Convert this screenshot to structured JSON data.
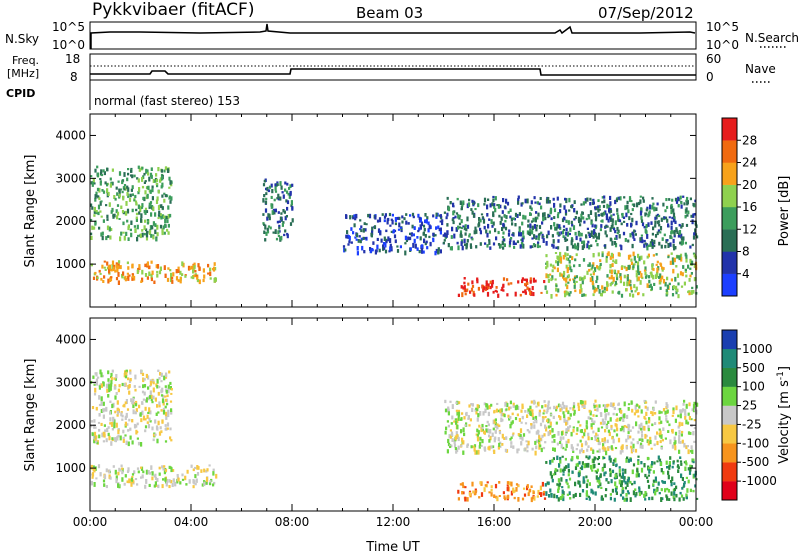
{
  "header": {
    "station": "Pykkvibaer (fitACF)",
    "beam": "Beam 03",
    "date": "07/Sep/2012"
  },
  "top_panels": {
    "nsky_label": "N.Sky",
    "nsky_ticks": [
      "10^5",
      "10^0"
    ],
    "nsearch_label": "N.Search",
    "nsearch_ticks": [
      "10^5",
      "10^0"
    ],
    "freq_label_line1": "Freq.",
    "freq_label_line2": "[MHz]",
    "freq_ticks": [
      "18",
      "8"
    ],
    "nave_label": "Nave",
    "nave_ticks": [
      "60",
      "0"
    ],
    "cpid_label": "CPID",
    "cpid_text": "normal (fast stereo) 153"
  },
  "colors": {
    "power": [
      "#1c3fff",
      "#2233aa",
      "#2a6e55",
      "#3c9d5c",
      "#8fd14f",
      "#f7a21b",
      "#f06a10",
      "#e61c1c"
    ],
    "velocity": [
      "#e0001a",
      "#f03a10",
      "#f7941d",
      "#f7c843",
      "#c8c8c8",
      "#6cd640",
      "#2a8a3e",
      "#1f8a77",
      "#1a3fb0"
    ]
  },
  "chart_data": [
    {
      "type": "heatmap",
      "title": "",
      "ylabel": "Slant Range [km]",
      "xlabel": "",
      "xlim": [
        "00:00",
        "24:00"
      ],
      "ylim": [
        0,
        4500
      ],
      "x_ticks": [
        "00:00",
        "04:00",
        "08:00",
        "12:00",
        "16:00",
        "20:00",
        "00:00"
      ],
      "y_ticks": [
        "1000",
        "2000",
        "3000",
        "4000"
      ],
      "colorbar": {
        "label": "Power [dB]",
        "ticks": [
          "4",
          "8",
          "12",
          "16",
          "20",
          "24",
          "28"
        ],
        "range": [
          0,
          30
        ]
      },
      "echo_regions": [
        {
          "t0": 0.0,
          "t1": 3.2,
          "r0": 1600,
          "r1": 3300,
          "level": 3
        },
        {
          "t0": 0.0,
          "t1": 5.0,
          "r0": 600,
          "r1": 1100,
          "level": 5
        },
        {
          "t0": 6.8,
          "t1": 8.0,
          "r0": 1600,
          "r1": 3000,
          "level": 2
        },
        {
          "t0": 10.0,
          "t1": 14.0,
          "r0": 1300,
          "r1": 2200,
          "level": 1
        },
        {
          "t0": 14.0,
          "t1": 24.0,
          "r0": 1400,
          "r1": 2600,
          "level": 2
        },
        {
          "t0": 14.5,
          "t1": 18.0,
          "r0": 300,
          "r1": 700,
          "level": 7
        },
        {
          "t0": 18.0,
          "t1": 24.0,
          "r0": 300,
          "r1": 1300,
          "level": 4
        }
      ]
    },
    {
      "type": "heatmap",
      "title": "",
      "ylabel": "Slant Range [km]",
      "xlabel": "Time UT",
      "xlim": [
        "00:00",
        "24:00"
      ],
      "ylim": [
        0,
        4500
      ],
      "x_ticks": [
        "00:00",
        "04:00",
        "08:00",
        "12:00",
        "16:00",
        "20:00",
        "00:00"
      ],
      "y_ticks": [
        "1000",
        "2000",
        "3000",
        "4000"
      ],
      "colorbar": {
        "label": "Velocity [m s",
        "label_exp": "-1",
        "label_end": "]",
        "ticks": [
          "1000",
          "500",
          "100",
          "25",
          "-25",
          "-100",
          "-500",
          "-1000"
        ],
        "range": [
          -1000,
          1000
        ]
      },
      "echo_regions": [
        {
          "t0": 0.0,
          "t1": 3.2,
          "r0": 1600,
          "r1": 3300,
          "level": 4
        },
        {
          "t0": 0.0,
          "t1": 5.0,
          "r0": 600,
          "r1": 1100,
          "level": 4
        },
        {
          "t0": 14.5,
          "t1": 18.0,
          "r0": 300,
          "r1": 700,
          "level": 2
        },
        {
          "t0": 14.0,
          "t1": 24.0,
          "r0": 1400,
          "r1": 2600,
          "level": 4
        },
        {
          "t0": 18.0,
          "t1": 24.0,
          "r0": 300,
          "r1": 1300,
          "level": 6
        }
      ]
    }
  ]
}
